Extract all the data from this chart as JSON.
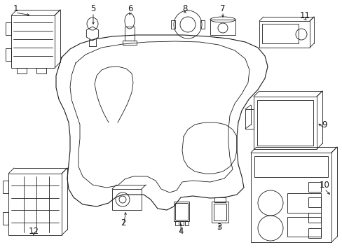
{
  "bg_color": "#ffffff",
  "line_color": "#1a1a1a",
  "fig_width": 4.89,
  "fig_height": 3.6,
  "dpi": 100
}
